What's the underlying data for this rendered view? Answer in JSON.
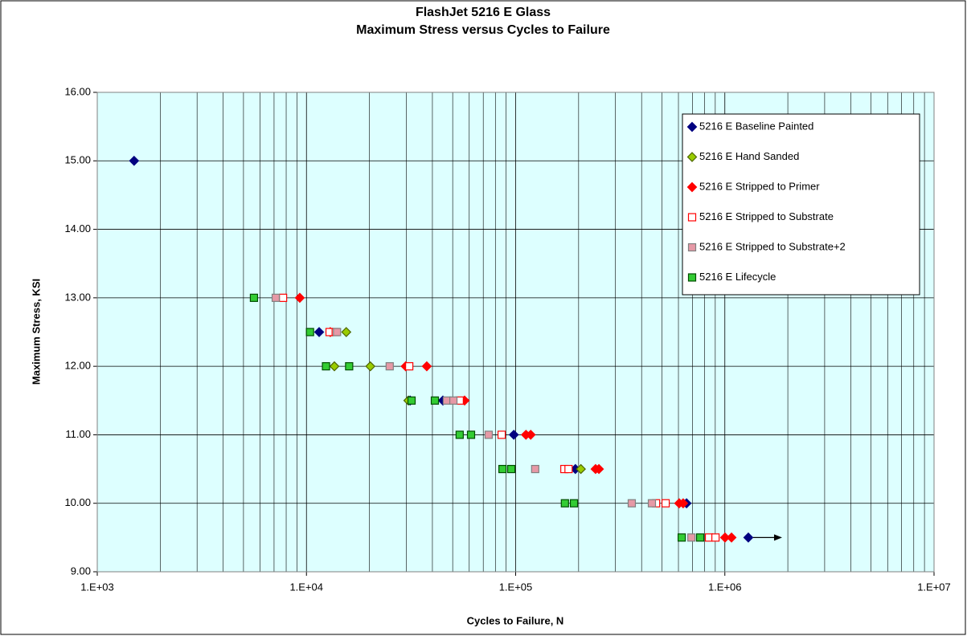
{
  "chart_data": {
    "type": "scatter",
    "title": "FlashJet 5216 E Glass",
    "subtitle": "Maximum Stress versus Cycles to Failure",
    "xlabel": "Cycles to Failure, N",
    "ylabel": "Maximum Stress, KSI",
    "xscale": "log",
    "xlim": [
      1000,
      10000000
    ],
    "xticks": [
      {
        "value": 1000,
        "label": "1.E+03"
      },
      {
        "value": 10000,
        "label": "1.E+04"
      },
      {
        "value": 100000,
        "label": "1.E+05"
      },
      {
        "value": 1000000,
        "label": "1.E+06"
      },
      {
        "value": 10000000,
        "label": "1.E+07"
      }
    ],
    "ylim": [
      9,
      16
    ],
    "yticks": [
      {
        "value": 9,
        "label": "9.00"
      },
      {
        "value": 10,
        "label": "10.00"
      },
      {
        "value": 11,
        "label": "11.00"
      },
      {
        "value": 12,
        "label": "12.00"
      },
      {
        "value": 13,
        "label": "13.00"
      },
      {
        "value": 14,
        "label": "14.00"
      },
      {
        "value": 15,
        "label": "15.00"
      },
      {
        "value": 16,
        "label": "16.00"
      }
    ],
    "grid": true,
    "legend": "upper right",
    "series": [
      {
        "name": "5216 E Baseline Painted",
        "marker": "diamond",
        "color": "#000080",
        "edgecolor": "#000080",
        "x": [
          1500,
          11500,
          31300,
          44900,
          98000,
          193000,
          656000,
          1295000
        ],
        "values": [
          15,
          12.5,
          11.5,
          11.5,
          11,
          10.5,
          10,
          9.5
        ]
      },
      {
        "name": "5216 E Hand Sanded",
        "marker": "diamond",
        "color": "#99cc00",
        "edgecolor": "#4d6600",
        "x": [
          15500,
          13600,
          20200,
          30700,
          205000
        ],
        "values": [
          12.5,
          12,
          12,
          11.5,
          10.5
        ]
      },
      {
        "name": "5216 E Stripped to Primer",
        "marker": "diamond",
        "color": "#ff0000",
        "edgecolor": "#ff0000",
        "x": [
          9290,
          13000,
          29800,
          37600,
          57000,
          112000,
          118000,
          241000,
          250000,
          605000,
          632000,
          1002000,
          1076000
        ],
        "values": [
          13,
          12.5,
          12,
          12,
          11.5,
          11,
          11,
          10.5,
          10.5,
          10,
          10,
          9.5,
          9.5
        ]
      },
      {
        "name": "5216 E Stripped to Substrate",
        "marker": "square",
        "color": "#ffffff",
        "edgecolor": "#ff0000",
        "x": [
          7730,
          12900,
          13800,
          31000,
          54000,
          85700,
          171000,
          179000,
          469000,
          521000,
          840000,
          902000
        ],
        "values": [
          13,
          12.5,
          12.5,
          12,
          11.5,
          11,
          10.5,
          10.5,
          10,
          10,
          9.5,
          9.5
        ]
      },
      {
        "name": "5216 E Stripped to Substrate+2",
        "marker": "square",
        "color": "#e699a6",
        "edgecolor": "#808080",
        "x": [
          7130,
          14000,
          25000,
          46900,
          50400,
          74300,
          124000,
          359000,
          448000,
          692000
        ],
        "values": [
          13,
          12.5,
          12,
          11.5,
          11.5,
          11,
          10.5,
          10,
          10,
          9.5
        ]
      },
      {
        "name": "5216 E Lifecycle",
        "marker": "square",
        "color": "#33cc33",
        "edgecolor": "#004d00",
        "x": [
          5610,
          10400,
          12400,
          16000,
          31800,
          41100,
          54000,
          61200,
          86500,
          95300,
          172000,
          190000,
          622000,
          762000
        ],
        "values": [
          13,
          12.5,
          12,
          12,
          11.5,
          11.5,
          11,
          11,
          10.5,
          10.5,
          10,
          10,
          9.5,
          9.5
        ]
      }
    ]
  }
}
